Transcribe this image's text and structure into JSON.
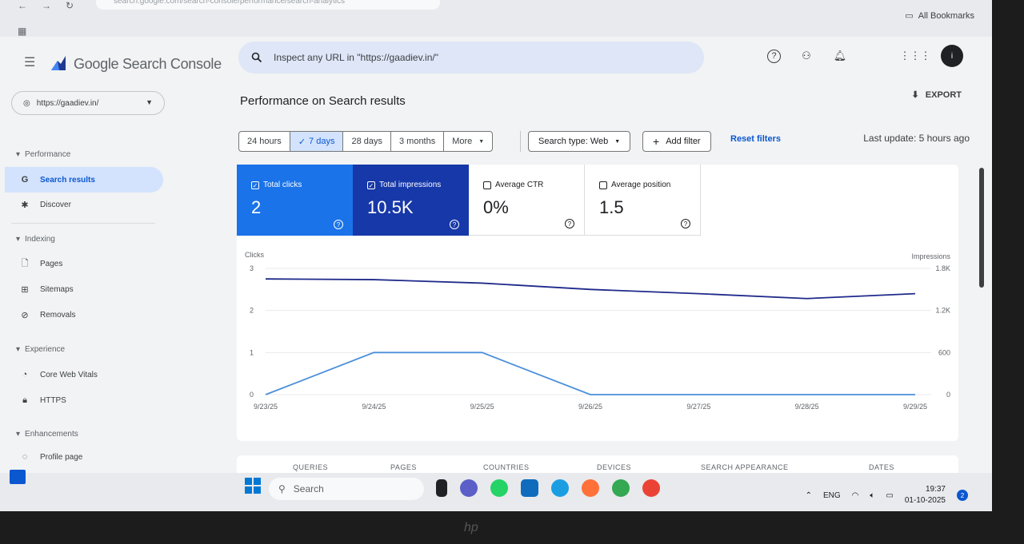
{
  "browser": {
    "url": "search.google.com/search-console/performance/search-analytics",
    "bookmarks_label": "All Bookmarks"
  },
  "header": {
    "product_name": "Google Search Console",
    "search_placeholder": "Inspect any URL in \"https://gaadiev.in/\"",
    "avatar_initial": "i"
  },
  "sidebar": {
    "property": "https://gaadiev.in/",
    "sections": {
      "performance": "Performance",
      "indexing": "Indexing",
      "experience": "Experience",
      "enhancements": "Enhancements"
    },
    "items": {
      "search_results": "Search results",
      "discover": "Discover",
      "pages": "Pages",
      "sitemaps": "Sitemaps",
      "removals": "Removals",
      "core_web_vitals": "Core Web Vitals",
      "https": "HTTPS",
      "profile_page": "Profile page"
    }
  },
  "main": {
    "title": "Performance on Search results",
    "export_label": "EXPORT",
    "date_ranges": [
      "24 hours",
      "7 days",
      "28 days",
      "3 months",
      "More"
    ],
    "selected_range": "7 days",
    "search_type": "Search type: Web",
    "add_filter": "Add filter",
    "reset_filters": "Reset filters",
    "last_update": "Last update: 5 hours ago",
    "metrics": {
      "clicks": {
        "label": "Total clicks",
        "value": "2"
      },
      "impressions": {
        "label": "Total impressions",
        "value": "10.5K"
      },
      "ctr": {
        "label": "Average CTR",
        "value": "0%"
      },
      "position": {
        "label": "Average position",
        "value": "1.5"
      }
    },
    "tabs": [
      "QUERIES",
      "PAGES",
      "COUNTRIES",
      "DEVICES",
      "SEARCH APPEARANCE",
      "DATES"
    ]
  },
  "chart_data": {
    "type": "line",
    "x": [
      "9/23/25",
      "9/24/25",
      "9/25/25",
      "9/26/25",
      "9/27/25",
      "9/28/25",
      "9/29/25"
    ],
    "left_axis": {
      "label": "Clicks",
      "ticks": [
        "3",
        "2",
        "1",
        "0"
      ],
      "range": [
        0,
        3
      ]
    },
    "right_axis": {
      "label": "Impressions",
      "ticks": [
        "1.8K",
        "1.2K",
        "600",
        "0"
      ],
      "range": [
        0,
        1800
      ]
    },
    "series": [
      {
        "name": "Clicks",
        "axis": "left",
        "color": "#4a8fd9",
        "values": [
          0,
          1,
          1,
          0,
          0,
          0,
          0
        ]
      },
      {
        "name": "Impressions",
        "axis": "right",
        "color": "#1f2a8a",
        "values": [
          1650,
          1640,
          1590,
          1500,
          1440,
          1370,
          1440
        ]
      }
    ]
  },
  "taskbar": {
    "search": "Search",
    "language": "ENG",
    "time": "19:37",
    "date": "01-10-2025",
    "notification_count": "2"
  }
}
